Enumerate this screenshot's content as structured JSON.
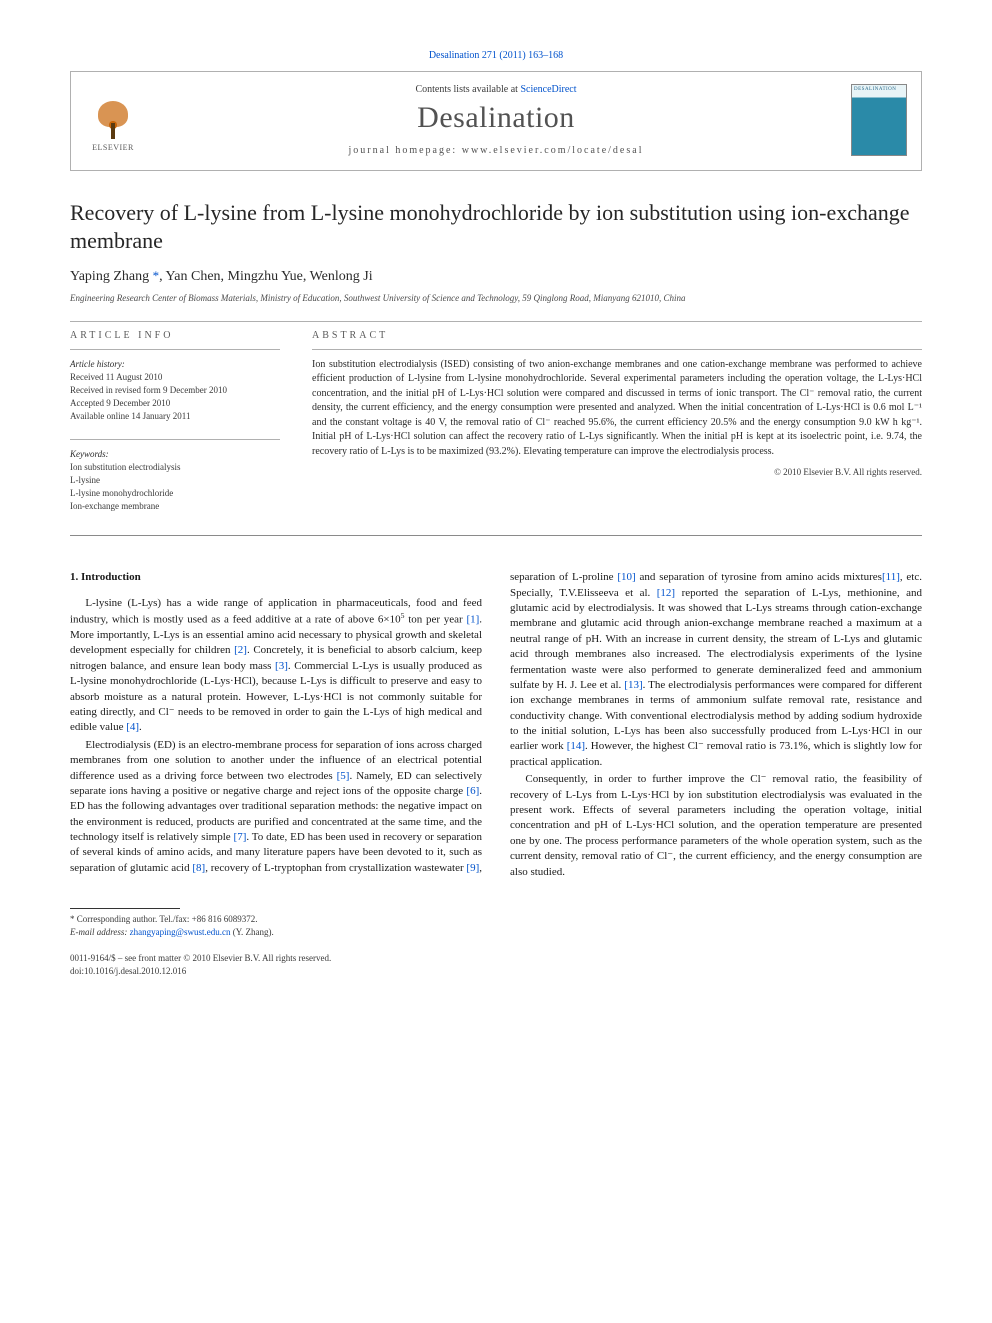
{
  "header": {
    "running_head": "Desalination 271 (2011) 163–168",
    "contents_prefix": "Contents lists available at ",
    "contents_link": "ScienceDirect",
    "journal_name": "Desalination",
    "homepage_prefix": "journal homepage: ",
    "homepage_url": "www.elsevier.com/locate/desal",
    "publisher_label": "ELSEVIER",
    "cover_label": "DESALINATION"
  },
  "article": {
    "title": "Recovery of L-lysine from L-lysine monohydrochloride by ion substitution using ion-exchange membrane",
    "authors_html": "Yaping Zhang <span class='star'>*</span>, Yan Chen, Mingzhu Yue, Wenlong Ji",
    "affiliation": "Engineering Research Center of Biomass Materials, Ministry of Education, Southwest University of Science and Technology, 59 Qinglong Road, Mianyang 621010, China"
  },
  "meta": {
    "info_label": "article info",
    "abstract_label": "abstract",
    "history_heading": "Article history:",
    "history_lines": [
      "Received 11 August 2010",
      "Received in revised form 9 December 2010",
      "Accepted 9 December 2010",
      "Available online 14 January 2011"
    ],
    "keywords_heading": "Keywords:",
    "keywords": [
      "Ion substitution electrodialysis",
      "L-lysine",
      "L-lysine monohydrochloride",
      "Ion-exchange membrane"
    ]
  },
  "abstract": {
    "text": "Ion substitution electrodialysis (ISED) consisting of two anion-exchange membranes and one cation-exchange membrane was performed to achieve efficient production of L-lysine from L-lysine monohydrochloride. Several experimental parameters including the operation voltage, the L-Lys·HCl concentration, and the initial pH of L-Lys·HCl solution were compared and discussed in terms of ionic transport. The Cl⁻ removal ratio, the current density, the current efficiency, and the energy consumption were presented and analyzed. When the initial concentration of L-Lys·HCl is 0.6 mol L⁻¹ and the constant voltage is 40 V, the removal ratio of Cl⁻ reached 95.6%, the current efficiency 20.5% and the energy consumption 9.0 kW h kg⁻¹. Initial pH of L-Lys·HCl solution can affect the recovery ratio of L-Lys significantly. When the initial pH is kept at its isoelectric point, i.e. 9.74, the recovery ratio of L-Lys is to be maximized (93.2%). Elevating temperature can improve the electrodialysis process.",
    "copyright": "© 2010 Elsevier B.V. All rights reserved."
  },
  "body": {
    "section_heading": "1. Introduction",
    "paragraphs": [
      "L-lysine (L-Lys) has a wide range of application in pharmaceuticals, food and feed industry, which is mostly used as a feed additive at a rate of above 6×10<span class='sup'>5</span> ton per year <span class='ref-link'>[1]</span>. More importantly, L-Lys is an essential amino acid necessary to physical growth and skeletal development especially for children <span class='ref-link'>[2]</span>. Concretely, it is beneficial to absorb calcium, keep nitrogen balance, and ensure lean body mass <span class='ref-link'>[3]</span>. Commercial L-Lys is usually produced as L-lysine monohydrochloride (L-Lys·HCl), because L-Lys is difficult to preserve and easy to absorb moisture as a natural protein. However, L-Lys·HCl is not commonly suitable for eating directly, and Cl⁻ needs to be removed in order to gain the L-Lys of high medical and edible value <span class='ref-link'>[4]</span>.",
      "Electrodialysis (ED) is an electro-membrane process for separation of ions across charged membranes from one solution to another under the influence of an electrical potential difference used as a driving force between two electrodes <span class='ref-link'>[5]</span>. Namely, ED can selectively separate ions having a positive or negative charge and reject ions of the opposite charge <span class='ref-link'>[6]</span>. ED has the following advantages over traditional separation methods: the negative impact on the environment is reduced, products are purified and concentrated at the same time, and the technology itself is relatively simple <span class='ref-link'>[7]</span>. To date, ED has been used in recovery or separation of several kinds of amino acids, and many literature papers have been devoted to it, such as separation of glutamic acid <span class='ref-link'>[8]</span>, recovery of L-tryptophan from crystallization wastewater <span class='ref-link'>[9]</span>, separation of L-proline <span class='ref-link'>[10]</span> and separation of tyrosine from amino acids mixtures<span class='ref-link'>[11]</span>, etc. Specially, T.V.Elisseeva et al. <span class='ref-link'>[12]</span> reported the separation of L-Lys, methionine, and glutamic acid by electrodialysis. It was showed that L-Lys streams through cation-exchange membrane and glutamic acid through anion-exchange membrane reached a maximum at a neutral range of pH. With an increase in current density, the stream of L-Lys and glutamic acid through membranes also increased. The electrodialysis experiments of the lysine fermentation waste were also performed to generate demineralized feed and ammonium sulfate by H. J. Lee et al. <span class='ref-link'>[13]</span>. The electrodialysis performances were compared for different ion exchange membranes in terms of ammonium sulfate removal rate, resistance and conductivity change. With conventional electrodialysis method by adding sodium hydroxide to the initial solution, L-Lys has been also successfully produced from L-Lys·HCl in our earlier work <span class='ref-link'>[14]</span>. However, the highest Cl⁻ removal ratio is 73.1%, which is slightly low for practical application.",
      "Consequently, in order to further improve the Cl⁻ removal ratio, the feasibility of recovery of L-Lys from L-Lys·HCl by ion substitution electrodialysis was evaluated in the present work. Effects of several parameters including the operation voltage, initial concentration and pH of L-Lys·HCl solution, and the operation temperature are presented one by one. The process performance parameters of the whole operation system, such as the current density, removal ratio of Cl⁻, the current efficiency, and the energy consumption are also studied."
    ]
  },
  "footer": {
    "corr_line": "* Corresponding author. Tel./fax: +86 816 6089372.",
    "email_label": "E-mail address: ",
    "email": "zhangyaping@swust.edu.cn",
    "email_suffix": " (Y. Zhang).",
    "issn_line": "0011-9164/$ – see front matter © 2010 Elsevier B.V. All rights reserved.",
    "doi_line": "doi:10.1016/j.desal.2010.12.016"
  },
  "colors": {
    "link": "#0052cc",
    "elsevier_orange": "#c9660a",
    "text": "#1a1a1a",
    "muted": "#5a5a5a",
    "rule": "#b0b0b0"
  }
}
